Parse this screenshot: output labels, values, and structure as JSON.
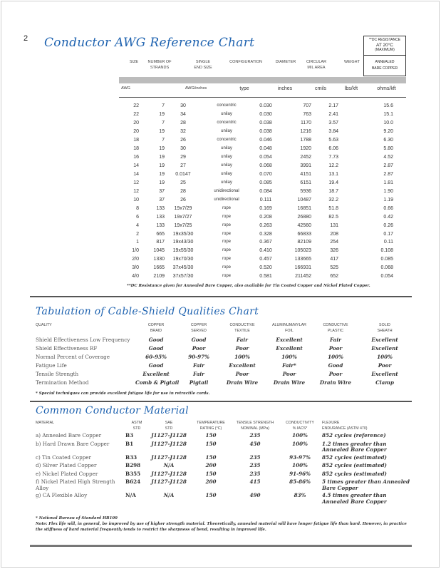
{
  "page_number": "2",
  "awg_chart": {
    "title": "Conductor AWG Reference Chart",
    "dc_box": {
      "top": [
        "**DC RESISTANCE",
        "AT 20°C",
        "(MAXIMUM)"
      ],
      "bottom": [
        "ANNEALED",
        "BARE COPPER"
      ]
    },
    "headers": [
      [
        "SIZE"
      ],
      [
        "NUMBER OF",
        "STRANDS"
      ],
      [
        "SINGLE",
        "END SIZE"
      ],
      [
        "CONFIGURATION"
      ],
      [
        "DIAMETER"
      ],
      [
        "CIRCULAR",
        "MIL AREA"
      ],
      [
        "WEIGHT"
      ]
    ],
    "units": [
      "AWG",
      "AWG/inches",
      "type",
      "inches",
      "cmils",
      "lbs/kft",
      "ohms/kft"
    ],
    "rows": [
      [
        "22",
        "7",
        "30",
        "concentric",
        "0.030",
        "707",
        "2.17",
        "15.6"
      ],
      [
        "22",
        "19",
        "34",
        "unilay",
        "0.030",
        "763",
        "2.41",
        "15.1"
      ],
      [
        "20",
        "7",
        "28",
        "concentric",
        "0.038",
        "1170",
        "3.57",
        "10.0"
      ],
      [
        "20",
        "19",
        "32",
        "unilay",
        "0.038",
        "1216",
        "3.84",
        "9.20"
      ],
      [
        "18",
        "7",
        "26",
        "concentric",
        "0.046",
        "1788",
        "5.63",
        "6.30"
      ],
      [
        "18",
        "19",
        "30",
        "unilay",
        "0.048",
        "1920",
        "6.06",
        "5.80"
      ],
      [
        "16",
        "19",
        "29",
        "unilay",
        "0.054",
        "2452",
        "7.73",
        "4.52"
      ],
      [
        "14",
        "19",
        "27",
        "unilay",
        "0.068",
        "3991",
        "12.2",
        "2.87"
      ],
      [
        "14",
        "19",
        "0.0147",
        "unilay",
        "0.070",
        "4151",
        "13.1",
        "2.87"
      ],
      [
        "12",
        "19",
        "25",
        "unilay",
        "0.085",
        "6151",
        "19.4",
        "1.81"
      ],
      [
        "12",
        "37",
        "28",
        "unidirectional",
        "0.084",
        "5936",
        "18.7",
        "1.90"
      ],
      [
        "10",
        "37",
        "26",
        "unidirectional",
        "0.111",
        "10487",
        "32.2",
        "1.19"
      ],
      [
        "8",
        "133",
        "19x7/29",
        "rope",
        "0.169",
        "16851",
        "51.8",
        "0.66"
      ],
      [
        "6",
        "133",
        "19x7/27",
        "rope",
        "0.208",
        "26880",
        "82.5",
        "0.42"
      ],
      [
        "4",
        "133",
        "19x7/25",
        "rope",
        "0.263",
        "42560",
        "131",
        "0.26"
      ],
      [
        "2",
        "665",
        "19x35/30",
        "rope",
        "0.328",
        "66833",
        "208",
        "0.17"
      ],
      [
        "1",
        "817",
        "19x43/30",
        "rope",
        "0.367",
        "82109",
        "254",
        "0.11"
      ],
      [
        "1/0",
        "1045",
        "19x55/30",
        "rope",
        "0.410",
        "105023",
        "326",
        "0.108"
      ],
      [
        "2/0",
        "1330",
        "19x70/30",
        "rope",
        "0.457",
        "133665",
        "417",
        "0.085"
      ],
      [
        "3/0",
        "1665",
        "37x45/30",
        "rope",
        "0.520",
        "166931",
        "525",
        "0.068"
      ],
      [
        "4/0",
        "2109",
        "37x57/30",
        "rope",
        "0.581",
        "211452",
        "652",
        "0.054"
      ]
    ],
    "footnote": "**DC Resistance given for Annealed Bare Copper, also available for Tin Coated Copper and Nickel Plated Copper."
  },
  "shield_chart": {
    "title": "Tabulation of Cable-Shield Qualities Chart",
    "headers": [
      [
        "QUALITY"
      ],
      [
        "COPPER",
        "BRAID"
      ],
      [
        "COPPER",
        "SERVED"
      ],
      [
        "CONDUCTIVE",
        "TEXTILE"
      ],
      [
        "ALUMINUM/MYLAR",
        "FOIL"
      ],
      [
        "CONDUCTIVE",
        "PLASTIC"
      ],
      [
        "SOLID",
        "SHEATH"
      ]
    ],
    "rows": [
      [
        "Shield Effectiveness Low Frequency",
        "Good",
        "Good",
        "Fair",
        "Excellent",
        "Fair",
        "Excellent"
      ],
      [
        "Shield Effectiveness RF",
        "Good",
        "Poor",
        "Poor",
        "Excellent",
        "Poor",
        "Excellent"
      ],
      [
        "Normal Percent of Coverage",
        "60-95%",
        "90-97%",
        "100%",
        "100%",
        "100%",
        "100%"
      ],
      [
        "Fatigue Life",
        "Good",
        "Fair",
        "Excellent",
        "Fair*",
        "Good",
        "Poor"
      ],
      [
        "Tensile Strength",
        "Excellent",
        "Fair",
        "Poor",
        "Poor",
        "Poor",
        "Excellent"
      ],
      [
        "Termination Method",
        "Comb & Pigtail",
        "Pigtail",
        "Drain Wire",
        "Drain Wire",
        "Drain Wire",
        "Clamp"
      ]
    ],
    "footnote": "* Special techniques can provide excellent fatigue life for use in retractile cords."
  },
  "material_chart": {
    "title": "Common Conductor Material",
    "headers": [
      [
        "MATERIAL"
      ],
      [
        "ASTM",
        "STD"
      ],
      [
        "SAE",
        "STD"
      ],
      [
        "TEMPERATURE",
        "RATING (°C)"
      ],
      [
        "TENSILE STRENGTH",
        "NOMINAL (MPa)"
      ],
      [
        "CONDUCTIVITY",
        "% IACS*"
      ],
      [
        "FLEXURE",
        "ENDURANCE (ASTM 470)"
      ]
    ],
    "rows": [
      [
        "a) Annealed Bare Copper",
        "B3",
        "J1127-J1128",
        "150",
        "235",
        "100%",
        "852 cycles (reference)"
      ],
      [
        "b) Hard Drawn Bare Copper",
        "B1",
        "J1127-J1128",
        "150",
        "450",
        "100%",
        "1.2 times greater than Annealed Bare Copper"
      ],
      [
        "c) Tin Coated Copper",
        "B33",
        "J1127-J1128",
        "150",
        "235",
        "93-97%",
        "852 cycles (estimated)"
      ],
      [
        "d) Silver Plated Copper",
        "B298",
        "N/A",
        "200",
        "235",
        "100%",
        "852 cycles (estimated)"
      ],
      [
        "e) Nickel Plated Copper",
        "B355",
        "J1127-J1128",
        "150",
        "235",
        "91-96%",
        "852 cycles (estimated)"
      ],
      [
        "f) Nickel Plated High Strength Alloy",
        "B624",
        "J1127-J1128",
        "200",
        "415",
        "85-86%",
        "5 times greater than Annealed Bare Copper"
      ],
      [
        "g) CA Flexible Alloy",
        "N/A",
        "N/A",
        "150",
        "490",
        "83%",
        "4.5 times greater than Annealed Bare Copper"
      ]
    ],
    "footnotes": [
      "* National Bureau of Standard HB100",
      "Note: Flex life will, in general, be improved by use of higher strength material. Theoretically, annealed material will have longer fatigue life than hard. However, in practice the stiffness of hard material frequently tends to restrict the sharpness of bend, resulting in improved life."
    ]
  }
}
